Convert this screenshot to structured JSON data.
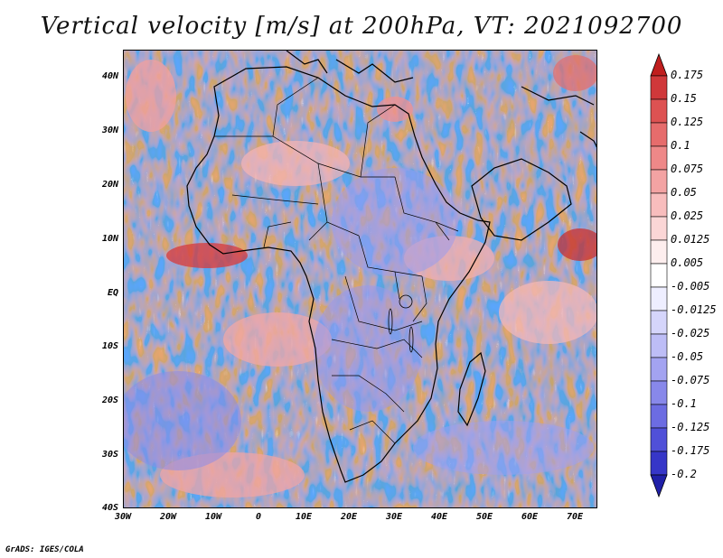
{
  "title": "Vertical velocity [m/s] at 200hPa, VT: 2021092700",
  "credit": "GrADS: IGES/COLA",
  "map": {
    "lon_range": [
      -30,
      75
    ],
    "lat_range": [
      -40,
      45
    ],
    "lat_ticks": [
      {
        "value": 40,
        "label": "40N"
      },
      {
        "value": 30,
        "label": "30N"
      },
      {
        "value": 20,
        "label": "20N"
      },
      {
        "value": 10,
        "label": "10N"
      },
      {
        "value": 0,
        "label": "EQ"
      },
      {
        "value": -10,
        "label": "10S"
      },
      {
        "value": -20,
        "label": "20S"
      },
      {
        "value": -30,
        "label": "30S"
      },
      {
        "value": -40,
        "label": "40S"
      }
    ],
    "lon_ticks": [
      {
        "value": -30,
        "label": "30W"
      },
      {
        "value": -20,
        "label": "20W"
      },
      {
        "value": -10,
        "label": "10W"
      },
      {
        "value": 0,
        "label": "0"
      },
      {
        "value": 10,
        "label": "10E"
      },
      {
        "value": 20,
        "label": "20E"
      },
      {
        "value": 30,
        "label": "30E"
      },
      {
        "value": 40,
        "label": "40E"
      },
      {
        "value": 50,
        "label": "50E"
      },
      {
        "value": 60,
        "label": "60E"
      },
      {
        "value": 70,
        "label": "70E"
      }
    ]
  },
  "colorbar": {
    "labels": [
      "0.175",
      "0.15",
      "0.125",
      "0.1",
      "0.075",
      "0.05",
      "0.025",
      "0.0125",
      "0.005",
      "-0.005",
      "-0.0125",
      "-0.025",
      "-0.05",
      "-0.075",
      "-0.1",
      "-0.125",
      "-0.175",
      "-0.2"
    ],
    "colors": [
      "#c01e1e",
      "#d0383a",
      "#dd5252",
      "#e66c6c",
      "#ee8888",
      "#f3a3a3",
      "#f8bdbd",
      "#fbd6d6",
      "#fdeeee",
      "#ffffff",
      "#eeeeff",
      "#d5d5fb",
      "#bdbdf6",
      "#a3a3f1",
      "#8888ea",
      "#6c6ce2",
      "#5050d8",
      "#3636c8",
      "#2020a8"
    ]
  }
}
